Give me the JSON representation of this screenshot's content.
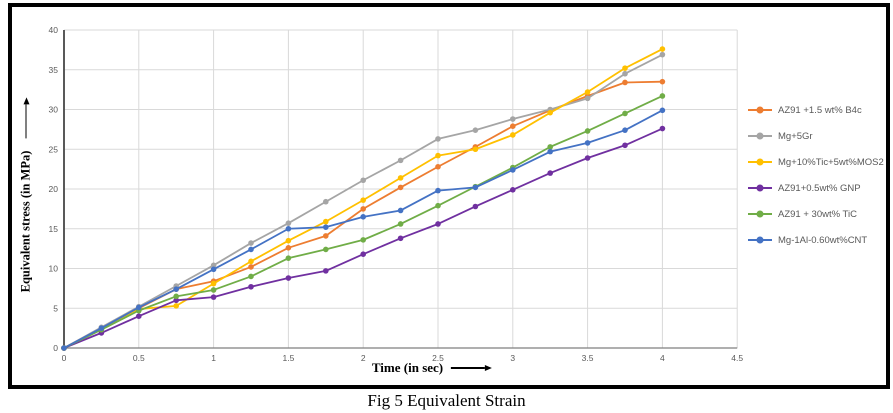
{
  "caption": "Fig 5 Equivalent Strain",
  "chart_data": {
    "type": "line",
    "title": "",
    "xlabel": "Time (in sec)",
    "ylabel": "Equivalent stress (in MPa)",
    "xlim": [
      0,
      4.5
    ],
    "ylim": [
      0,
      40
    ],
    "grid": true,
    "legend_position": "right",
    "x_tick_labels": [
      "0",
      "0.5",
      "1",
      "1.5",
      "2",
      "2.5",
      "3",
      "3.5",
      "4",
      "4.5"
    ],
    "y_tick_labels": [
      "0",
      "5",
      "10",
      "15",
      "20",
      "25",
      "30",
      "35",
      "40"
    ],
    "axis_color": "#7f7f7f",
    "gridline_color": "#d9d9d9",
    "tick_label_color": "#595959",
    "x": [
      0,
      0.25,
      0.5,
      0.75,
      1,
      1.25,
      1.5,
      1.75,
      2,
      2.25,
      2.5,
      2.75,
      3,
      3.25,
      3.5,
      3.75,
      4
    ],
    "series": [
      {
        "name": "AZ91 +1.5 wt% B4c",
        "color": "#ED7D31",
        "values": [
          0,
          2.5,
          5.0,
          7.4,
          8.4,
          10.2,
          12.6,
          14.1,
          17.5,
          20.2,
          22.8,
          25.3,
          27.9,
          29.9,
          31.7,
          33.4,
          33.5
        ]
      },
      {
        "name": "Mg+5Gr",
        "color": "#A5A5A5",
        "values": [
          0,
          2.6,
          5.2,
          7.8,
          10.4,
          13.2,
          15.7,
          18.4,
          21.1,
          23.6,
          26.3,
          27.4,
          28.8,
          30.0,
          31.4,
          34.5,
          36.9
        ]
      },
      {
        "name": "Mg+10%Tic+5wt%MOS2",
        "color": "#FFC000",
        "values": [
          0,
          2.4,
          4.9,
          5.3,
          8.1,
          10.9,
          13.5,
          15.9,
          18.6,
          21.4,
          24.2,
          25.0,
          26.8,
          29.6,
          32.2,
          35.2,
          37.6
        ]
      },
      {
        "name": "AZ91+0.5wt% GNP",
        "color": "#7030A0",
        "values": [
          0,
          1.9,
          4.0,
          6.0,
          6.4,
          7.7,
          8.8,
          9.7,
          11.8,
          13.8,
          15.6,
          17.8,
          19.9,
          22.0,
          23.9,
          25.5,
          27.6
        ]
      },
      {
        "name": "AZ91 + 30wt% TiC",
        "color": "#70AD47",
        "values": [
          0,
          2.3,
          4.7,
          6.5,
          7.3,
          9.0,
          11.3,
          12.4,
          13.6,
          15.6,
          17.9,
          20.3,
          22.7,
          25.3,
          27.3,
          29.5,
          31.7
        ]
      },
      {
        "name": "Mg-1Al-0.60wt%CNT",
        "color": "#4472C4",
        "values": [
          0,
          2.5,
          5.1,
          7.4,
          9.9,
          12.4,
          15.0,
          15.2,
          16.5,
          17.3,
          19.8,
          20.2,
          22.4,
          24.7,
          25.8,
          27.4,
          29.9
        ]
      }
    ]
  }
}
